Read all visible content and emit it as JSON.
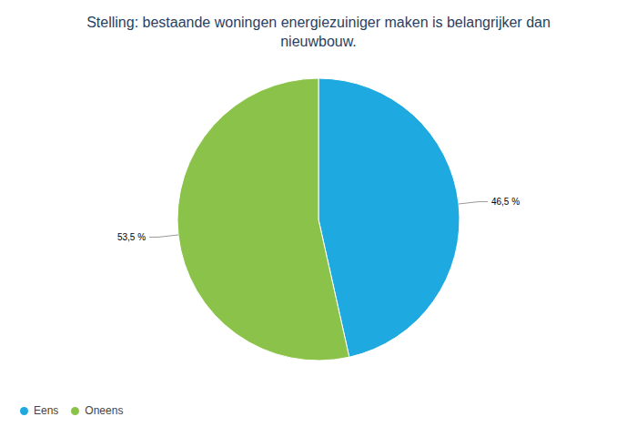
{
  "chart_data": {
    "type": "pie",
    "title": "Stelling: bestaande woningen energiezuiniger maken is belangrijker dan nieuwbouw.",
    "categories": [
      "Eens",
      "Oneens"
    ],
    "values": [
      46.5,
      53.5
    ],
    "value_labels": [
      "46,5 %",
      "53,5 %"
    ],
    "colors": [
      "#1fa9e1",
      "#8bc34a"
    ],
    "data_labels": true,
    "legend": "bottom-left"
  }
}
